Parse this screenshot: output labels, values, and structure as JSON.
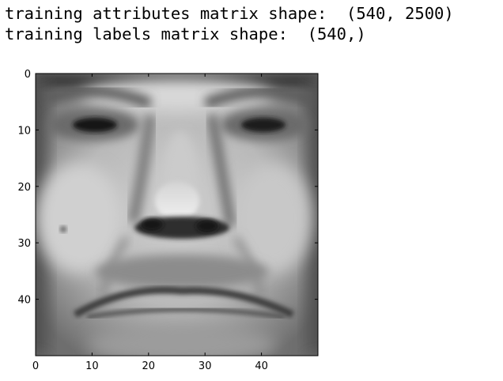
{
  "output": {
    "line1": "training attributes matrix shape:  (540, 2500)",
    "line2": "training labels matrix shape:  (540,)"
  },
  "chart_data": {
    "type": "heatmap",
    "colormap": "gray",
    "image_shape": [
      50,
      50
    ],
    "title": "",
    "xlabel": "",
    "ylabel": "",
    "xlim": [
      0,
      50
    ],
    "ylim": [
      50,
      0
    ],
    "x_ticks": [
      "0",
      "10",
      "20",
      "30",
      "40"
    ],
    "y_ticks": [
      "0",
      "10",
      "20",
      "30",
      "40"
    ],
    "grid": false
  }
}
